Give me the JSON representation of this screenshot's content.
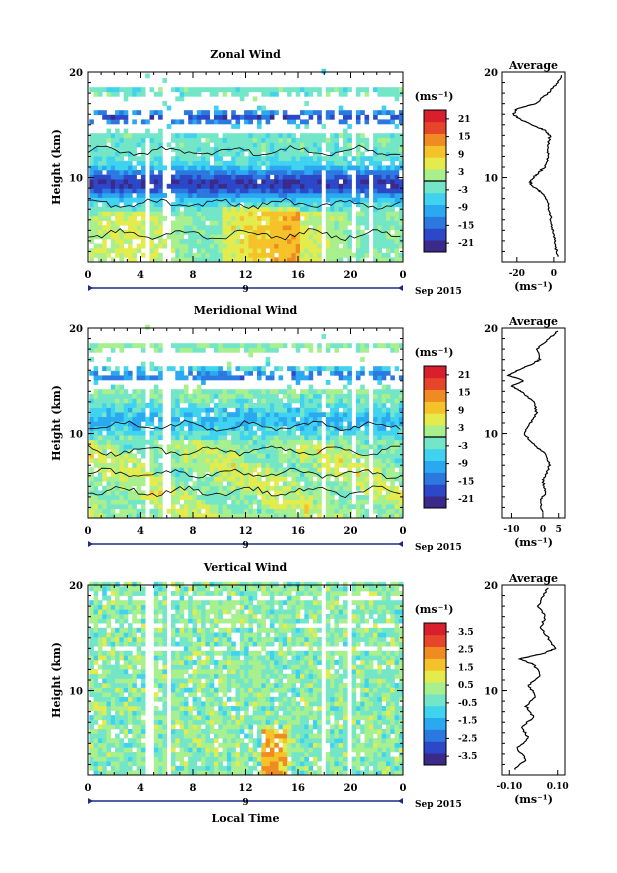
{
  "figure": {
    "date_label": "Sep 2015",
    "x_axis_label": "Local Time",
    "day_label": "9",
    "colorbar_unit": "(ms⁻¹)",
    "profile_unit": "(ms⁻¹)",
    "profile_title": "Average",
    "y_axis_label": "Height (km)"
  },
  "colors": {
    "palette": [
      "#3b2a8a",
      "#2c48c8",
      "#2a78e0",
      "#2aa8f0",
      "#3fd3f0",
      "#74e6c8",
      "#a8ef8e",
      "#e3ec4c",
      "#f6c22a",
      "#f08a22",
      "#e6452a",
      "#d91f2e"
    ],
    "zero_contour": "#000000"
  },
  "chart_data": [
    {
      "type": "heatmap",
      "title": "Zonal Wind",
      "x_ticks": [
        "0",
        "4",
        "8",
        "12",
        "16",
        "20",
        "0"
      ],
      "xlim": [
        0,
        24
      ],
      "y_ticks": [
        "20",
        "10"
      ],
      "ylim": [
        2,
        20
      ],
      "colorbar_ticks": [
        "21",
        "15",
        "9",
        "3",
        "-3",
        "-9",
        "-15",
        "-21"
      ],
      "colorbar_range": [
        -24,
        24
      ],
      "zero_contour": true,
      "profile": {
        "title": "Average",
        "x_ticks": [
          "-20",
          "0"
        ],
        "xlim": [
          -28,
          6
        ],
        "heights": [
          2.5,
          3.5,
          4.5,
          5.5,
          6.5,
          7.5,
          8.5,
          9.0,
          9.5,
          10.0,
          10.5,
          11.0,
          12.0,
          13.0,
          14.0,
          14.5,
          15.0,
          15.5,
          16.0,
          16.5,
          17.0,
          18.0,
          19.0,
          19.8
        ],
        "values": [
          2,
          1,
          0,
          -1,
          -2,
          -3,
          -6,
          -10,
          -13,
          -11,
          -8,
          -5,
          -3,
          -3,
          -2,
          -5,
          -12,
          -18,
          -22,
          -20,
          -10,
          -3,
          2,
          5
        ]
      }
    },
    {
      "type": "heatmap",
      "title": "Meridional Wind",
      "x_ticks": [
        "0",
        "4",
        "8",
        "12",
        "16",
        "20",
        "0"
      ],
      "xlim": [
        0,
        24
      ],
      "y_ticks": [
        "20",
        "10"
      ],
      "ylim": [
        2,
        20
      ],
      "colorbar_ticks": [
        "21",
        "15",
        "9",
        "3",
        "-3",
        "-9",
        "-15",
        "-21"
      ],
      "colorbar_range": [
        -24,
        24
      ],
      "zero_contour": true,
      "profile": {
        "title": "Average",
        "x_ticks": [
          "-10",
          "0",
          "5"
        ],
        "xlim": [
          -13,
          7
        ],
        "heights": [
          2.5,
          3.5,
          4.5,
          5.5,
          6.0,
          7.0,
          8.0,
          9.0,
          10.0,
          11.0,
          12.0,
          13.0,
          14.0,
          14.5,
          15.0,
          15.5,
          16.0,
          16.5,
          17.0,
          18.0,
          19.0,
          19.8
        ],
        "values": [
          0,
          -1,
          1,
          0,
          1,
          2,
          1,
          -3,
          -6,
          -4,
          -2,
          -3,
          -7,
          -10,
          -6,
          -11,
          -8,
          -4,
          -1,
          -2,
          2,
          5
        ]
      }
    },
    {
      "type": "heatmap",
      "title": "Vertical Wind",
      "x_ticks": [
        "0",
        "4",
        "8",
        "12",
        "16",
        "20",
        "0"
      ],
      "xlim": [
        0,
        24
      ],
      "y_ticks": [
        "20",
        "10"
      ],
      "ylim": [
        2,
        20
      ],
      "colorbar_ticks": [
        "3.5",
        "2.5",
        "1.5",
        "0.5",
        "-0.5",
        "-1.5",
        "-2.5",
        "-3.5"
      ],
      "colorbar_range": [
        -4,
        4
      ],
      "zero_contour": false,
      "profile": {
        "title": "Average",
        "x_ticks": [
          "-0.10",
          "0.10"
        ],
        "xlim": [
          -0.13,
          0.13
        ],
        "heights": [
          2.5,
          3.5,
          4.5,
          5.5,
          6.5,
          7.5,
          8.5,
          9.5,
          10.5,
          11.5,
          12.5,
          13.0,
          13.5,
          14.0,
          15.0,
          16.0,
          17.0,
          18.0,
          19.0,
          19.8
        ],
        "values": [
          -0.08,
          -0.03,
          -0.07,
          -0.02,
          -0.05,
          0.0,
          -0.03,
          0.01,
          -0.02,
          0.03,
          0.0,
          -0.06,
          0.04,
          0.09,
          0.06,
          0.03,
          0.05,
          0.02,
          0.04,
          0.06
        ]
      }
    }
  ]
}
